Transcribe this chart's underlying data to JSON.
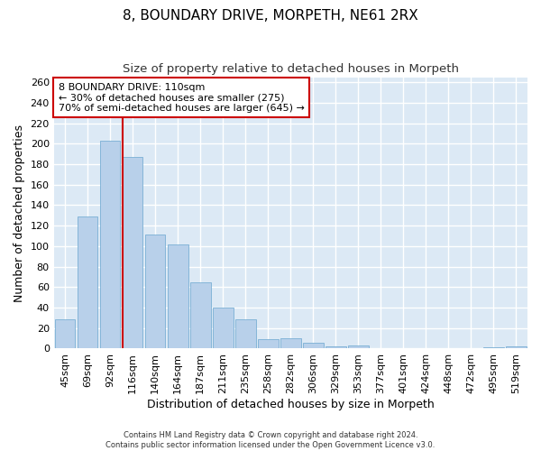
{
  "title": "8, BOUNDARY DRIVE, MORPETH, NE61 2RX",
  "subtitle": "Size of property relative to detached houses in Morpeth",
  "xlabel": "Distribution of detached houses by size in Morpeth",
  "ylabel": "Number of detached properties",
  "categories": [
    "45sqm",
    "69sqm",
    "92sqm",
    "116sqm",
    "140sqm",
    "164sqm",
    "187sqm",
    "211sqm",
    "235sqm",
    "258sqm",
    "282sqm",
    "306sqm",
    "329sqm",
    "353sqm",
    "377sqm",
    "401sqm",
    "424sqm",
    "448sqm",
    "472sqm",
    "495sqm",
    "519sqm"
  ],
  "values": [
    29,
    129,
    203,
    187,
    111,
    102,
    65,
    40,
    29,
    9,
    10,
    6,
    2,
    3,
    0,
    0,
    0,
    0,
    0,
    1,
    2
  ],
  "bar_color": "#b8d0ea",
  "bar_edge_color": "#7aafd4",
  "annotation_text": "8 BOUNDARY DRIVE: 110sqm\n← 30% of detached houses are smaller (275)\n70% of semi-detached houses are larger (645) →",
  "annotation_box_color": "#ffffff",
  "annotation_box_edge": "#cc0000",
  "vline_color": "#cc0000",
  "background_color": "#dce9f5",
  "grid_color": "#ffffff",
  "footer_line1": "Contains HM Land Registry data © Crown copyright and database right 2024.",
  "footer_line2": "Contains public sector information licensed under the Open Government Licence v3.0.",
  "ylim": [
    0,
    265
  ],
  "yticks": [
    0,
    20,
    40,
    60,
    80,
    100,
    120,
    140,
    160,
    180,
    200,
    220,
    240,
    260
  ],
  "title_fontsize": 11,
  "subtitle_fontsize": 9.5,
  "tick_fontsize": 8,
  "ylabel_fontsize": 9,
  "xlabel_fontsize": 9,
  "annotation_fontsize": 8,
  "footer_fontsize": 6
}
